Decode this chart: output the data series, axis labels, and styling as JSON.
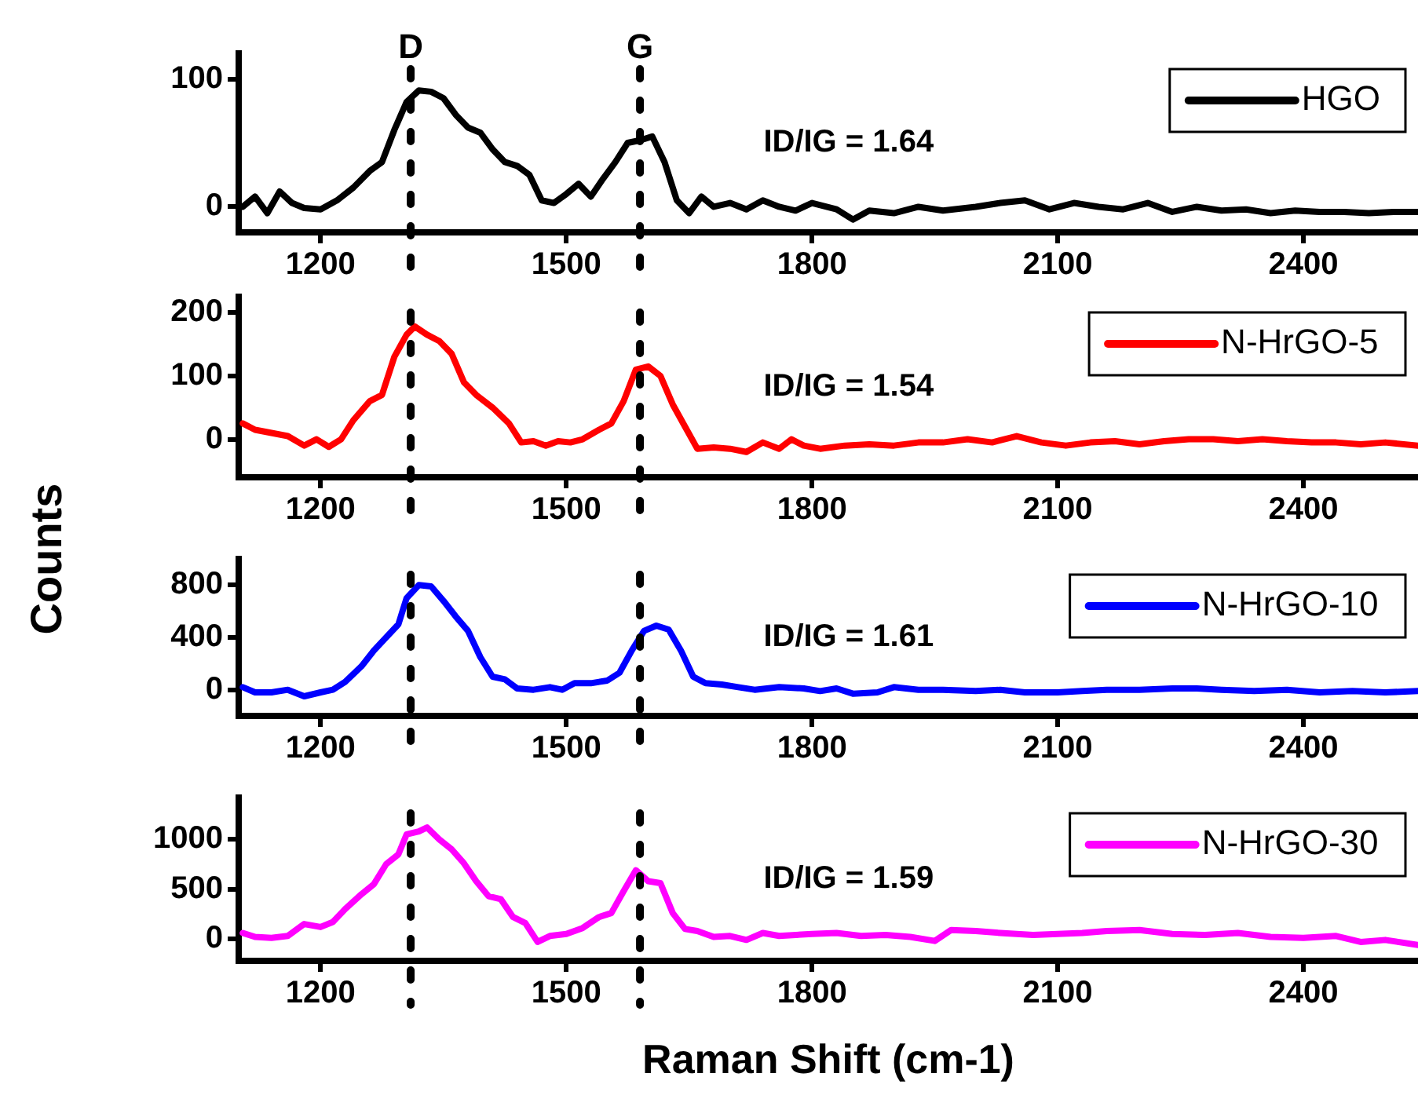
{
  "chart_data": [
    {
      "type": "line",
      "xlim": [
        1100,
        2540
      ],
      "xticks": [
        1200,
        1500,
        1800,
        2100,
        2400
      ],
      "ylim": [
        -20,
        120
      ],
      "yticks": [
        0,
        100
      ],
      "legend": "top right",
      "marker": "none",
      "ref_lines": [
        {
          "axis": "x",
          "value": 1310,
          "label": "D",
          "line_style": "dotted",
          "color": "#000000"
        },
        {
          "axis": "x",
          "value": 1590,
          "label": "G",
          "line_style": "dotted",
          "color": "#000000"
        }
      ],
      "annotations": [
        "ID/IG = 1.64"
      ],
      "x": [
        1105,
        1120,
        1135,
        1150,
        1165,
        1180,
        1200,
        1220,
        1240,
        1260,
        1275,
        1290,
        1305,
        1320,
        1335,
        1350,
        1365,
        1380,
        1395,
        1410,
        1425,
        1440,
        1455,
        1470,
        1485,
        1500,
        1515,
        1530,
        1545,
        1560,
        1575,
        1590,
        1605,
        1620,
        1635,
        1650,
        1665,
        1680,
        1700,
        1720,
        1740,
        1760,
        1780,
        1800,
        1830,
        1850,
        1870,
        1900,
        1930,
        1960,
        2000,
        2030,
        2060,
        2090,
        2120,
        2150,
        2180,
        2210,
        2240,
        2270,
        2300,
        2330,
        2360,
        2390,
        2420,
        2450,
        2480,
        2510,
        2540
      ],
      "series": [
        {
          "name": "HGO",
          "color": "#000000",
          "values": [
            0,
            8,
            -5,
            12,
            3,
            -1,
            -2,
            5,
            15,
            28,
            35,
            60,
            82,
            91,
            90,
            85,
            72,
            62,
            58,
            45,
            35,
            32,
            25,
            5,
            3,
            10,
            18,
            8,
            22,
            35,
            50,
            52,
            55,
            35,
            5,
            -5,
            8,
            0,
            3,
            -2,
            5,
            0,
            -3,
            3,
            -2,
            -10,
            -3,
            -5,
            0,
            -3,
            0,
            3,
            5,
            -2,
            3,
            0,
            -2,
            3,
            -4,
            0,
            -3,
            -2,
            -5,
            -3,
            -4,
            -4,
            -5,
            -4,
            -4
          ]
        }
      ]
    },
    {
      "type": "line",
      "xlim": [
        1100,
        2540
      ],
      "xticks": [
        1200,
        1500,
        1800,
        2100,
        2400
      ],
      "ylim": [
        -60,
        225
      ],
      "yticks": [
        0,
        100,
        200
      ],
      "legend": "top right",
      "marker": "none",
      "ylabel": "Counts",
      "ref_lines": [
        {
          "axis": "x",
          "value": 1310,
          "line_style": "dotted",
          "color": "#000000"
        },
        {
          "axis": "x",
          "value": 1590,
          "line_style": "dotted",
          "color": "#000000"
        }
      ],
      "annotations": [
        "ID/IG = 1.54"
      ],
      "x": [
        1105,
        1120,
        1140,
        1160,
        1180,
        1195,
        1210,
        1225,
        1240,
        1260,
        1275,
        1290,
        1305,
        1315,
        1330,
        1345,
        1360,
        1375,
        1390,
        1410,
        1430,
        1445,
        1460,
        1475,
        1490,
        1505,
        1520,
        1540,
        1555,
        1570,
        1585,
        1600,
        1615,
        1630,
        1645,
        1660,
        1680,
        1700,
        1720,
        1740,
        1760,
        1775,
        1790,
        1810,
        1840,
        1870,
        1900,
        1930,
        1960,
        1990,
        2020,
        2050,
        2080,
        2110,
        2140,
        2170,
        2200,
        2230,
        2260,
        2290,
        2320,
        2350,
        2380,
        2410,
        2440,
        2470,
        2500,
        2540
      ],
      "series": [
        {
          "name": "N-HrGO-5",
          "color": "#ff0000",
          "values": [
            25,
            15,
            10,
            5,
            -10,
            0,
            -12,
            0,
            30,
            60,
            70,
            130,
            165,
            178,
            165,
            155,
            135,
            90,
            70,
            50,
            25,
            -5,
            -3,
            -10,
            -3,
            -5,
            0,
            15,
            25,
            60,
            110,
            115,
            100,
            55,
            20,
            -15,
            -13,
            -15,
            -20,
            -5,
            -15,
            0,
            -10,
            -15,
            -10,
            -8,
            -10,
            -5,
            -5,
            0,
            -5,
            5,
            -5,
            -10,
            -5,
            -3,
            -8,
            -3,
            0,
            0,
            -3,
            0,
            -3,
            -5,
            -5,
            -8,
            -5,
            -10
          ]
        }
      ]
    },
    {
      "type": "line",
      "xlim": [
        1100,
        2540
      ],
      "xticks": [
        1200,
        1500,
        1800,
        2100,
        2400
      ],
      "ylim": [
        -200,
        1000
      ],
      "yticks": [
        0,
        400,
        800
      ],
      "legend": "top right",
      "marker": "none",
      "ref_lines": [
        {
          "axis": "x",
          "value": 1310,
          "line_style": "dotted",
          "color": "#000000"
        },
        {
          "axis": "x",
          "value": 1590,
          "line_style": "dotted",
          "color": "#000000"
        }
      ],
      "annotations": [
        "ID/IG = 1.61"
      ],
      "x": [
        1105,
        1120,
        1140,
        1160,
        1180,
        1200,
        1215,
        1230,
        1250,
        1265,
        1280,
        1295,
        1305,
        1320,
        1335,
        1350,
        1365,
        1380,
        1395,
        1410,
        1425,
        1440,
        1460,
        1480,
        1495,
        1510,
        1530,
        1550,
        1565,
        1580,
        1595,
        1610,
        1625,
        1640,
        1655,
        1670,
        1690,
        1710,
        1730,
        1760,
        1790,
        1810,
        1830,
        1850,
        1880,
        1900,
        1930,
        1960,
        2000,
        2030,
        2060,
        2100,
        2130,
        2160,
        2200,
        2240,
        2270,
        2300,
        2340,
        2380,
        2420,
        2460,
        2500,
        2540
      ],
      "series": [
        {
          "name": "N-HrGO-10",
          "color": "#0000ff",
          "values": [
            20,
            -20,
            -20,
            0,
            -50,
            -20,
            0,
            60,
            180,
            300,
            400,
            500,
            700,
            800,
            790,
            680,
            560,
            450,
            250,
            100,
            80,
            10,
            0,
            20,
            0,
            50,
            50,
            70,
            130,
            300,
            450,
            490,
            460,
            300,
            100,
            50,
            40,
            20,
            0,
            20,
            10,
            -10,
            10,
            -30,
            -20,
            20,
            0,
            0,
            -10,
            0,
            -20,
            -20,
            -10,
            0,
            0,
            10,
            10,
            0,
            -10,
            0,
            -20,
            -10,
            -20,
            -10
          ]
        }
      ]
    },
    {
      "type": "line",
      "xlim": [
        1100,
        2540
      ],
      "xticks": [
        1200,
        1500,
        1800,
        2100,
        2400
      ],
      "ylim": [
        -220,
        1420
      ],
      "yticks": [
        0,
        500,
        1000
      ],
      "legend": "top right",
      "marker": "none",
      "xlabel": "Raman Shift (cm-1)",
      "ref_lines": [
        {
          "axis": "x",
          "value": 1310,
          "line_style": "dotted",
          "color": "#000000"
        },
        {
          "axis": "x",
          "value": 1590,
          "line_style": "dotted",
          "color": "#000000"
        }
      ],
      "annotations": [
        "ID/IG = 1.59"
      ],
      "x": [
        1105,
        1120,
        1140,
        1160,
        1180,
        1200,
        1215,
        1230,
        1250,
        1265,
        1280,
        1295,
        1305,
        1320,
        1330,
        1345,
        1360,
        1375,
        1390,
        1405,
        1420,
        1435,
        1450,
        1465,
        1480,
        1500,
        1520,
        1540,
        1555,
        1570,
        1585,
        1600,
        1615,
        1630,
        1645,
        1660,
        1680,
        1700,
        1720,
        1740,
        1760,
        1800,
        1830,
        1860,
        1890,
        1920,
        1950,
        1970,
        2000,
        2030,
        2070,
        2100,
        2130,
        2160,
        2200,
        2240,
        2280,
        2320,
        2360,
        2400,
        2440,
        2470,
        2500,
        2540
      ],
      "series": [
        {
          "name": "N-HrGO-30",
          "color": "#ff00ff",
          "values": [
            60,
            20,
            10,
            30,
            150,
            120,
            170,
            300,
            450,
            550,
            750,
            850,
            1050,
            1080,
            1120,
            1000,
            900,
            760,
            580,
            430,
            400,
            220,
            160,
            -30,
            30,
            50,
            110,
            220,
            260,
            480,
            690,
            580,
            560,
            260,
            100,
            80,
            20,
            30,
            -10,
            60,
            30,
            50,
            60,
            30,
            40,
            20,
            -20,
            90,
            80,
            60,
            40,
            50,
            60,
            80,
            90,
            50,
            40,
            60,
            20,
            10,
            30,
            -30,
            -10,
            -60
          ]
        }
      ]
    }
  ]
}
